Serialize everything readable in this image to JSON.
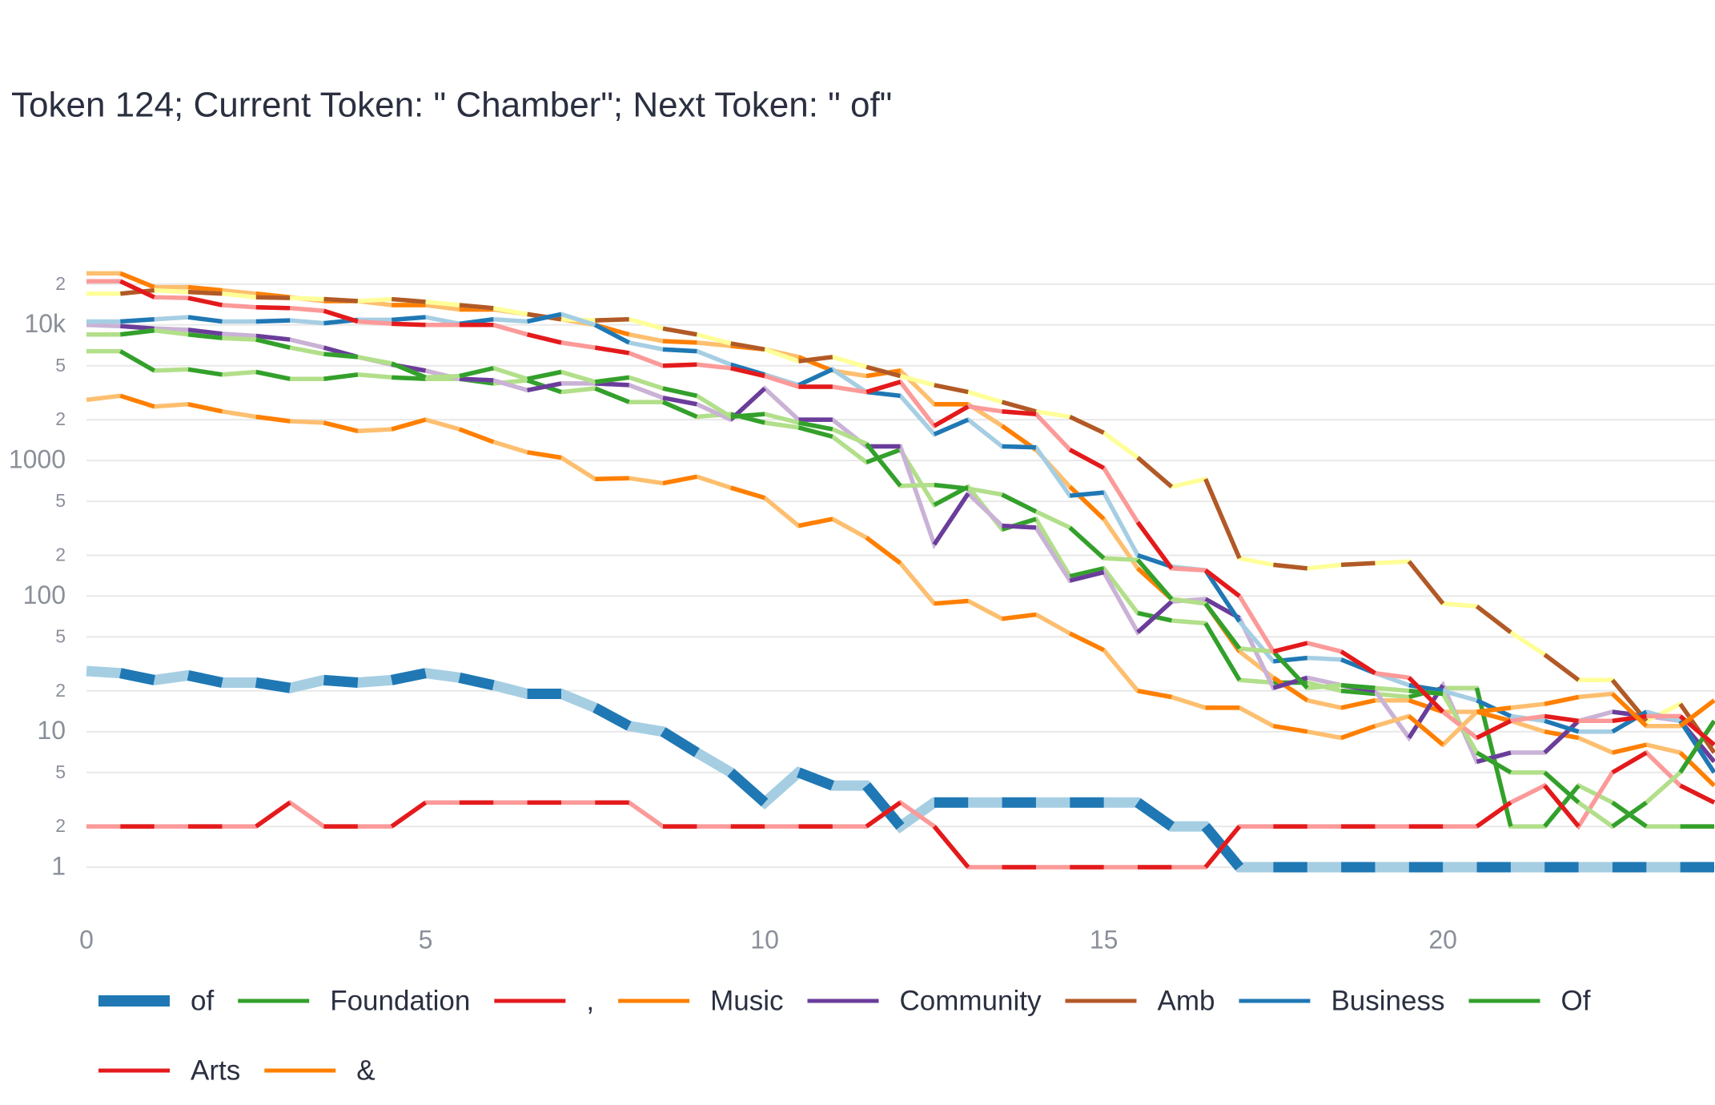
{
  "chart_data": {
    "type": "line",
    "title": "Token 124; Current Token: \" Chamber\"; Next Token: \" of\"",
    "x": [
      0,
      0.5,
      1,
      1.5,
      2,
      2.5,
      3,
      3.5,
      4,
      4.5,
      5,
      5.5,
      6,
      6.5,
      7,
      7.5,
      8,
      8.5,
      9,
      9.5,
      10,
      10.5,
      11,
      11.5,
      12,
      12.5,
      13,
      13.5,
      14,
      14.5,
      15,
      15.5,
      16,
      16.5,
      17,
      17.5,
      18,
      18.5,
      19,
      19.5,
      20,
      20.5,
      21,
      21.5,
      22,
      22.5,
      23,
      23.5,
      24
    ],
    "xlim": [
      0,
      24
    ],
    "xticks": [
      0,
      5,
      10,
      15,
      20
    ],
    "ylim": [
      0.5,
      30000
    ],
    "log_y": true,
    "yticks": [
      1,
      2,
      5,
      10,
      {
        "value": 20,
        "label": "2"
      },
      {
        "value": 50,
        "label": "5"
      },
      100,
      {
        "value": 200,
        "label": "2"
      },
      {
        "value": 500,
        "label": "5"
      },
      1000,
      {
        "value": 2000,
        "label": "2"
      },
      {
        "value": 5000,
        "label": "5"
      },
      {
        "value": 10000,
        "label": "10k"
      },
      {
        "value": 20000,
        "label": "2"
      }
    ],
    "grid": true,
    "legend": "bottom",
    "series": [
      {
        "name": "of",
        "color": "#1f78b4",
        "alt_color": "#a6cee3",
        "emphasis": true,
        "values": [
          28,
          27,
          24,
          26,
          23,
          23,
          21,
          24,
          23,
          24,
          27,
          25,
          22,
          19,
          19,
          15,
          11,
          10,
          7,
          5,
          3,
          5,
          4,
          4,
          2,
          3,
          3,
          3,
          3,
          3,
          3,
          3,
          2,
          2,
          1,
          1,
          1,
          1,
          1,
          1,
          1,
          1,
          1,
          1,
          1,
          1,
          1,
          1,
          1
        ]
      },
      {
        "name": "Foundation",
        "color": "#33a02c",
        "alt_color": "#b2df8a",
        "values": [
          6400,
          6400,
          4600,
          4700,
          4300,
          4500,
          4000,
          4000,
          4300,
          4100,
          4000,
          4000,
          3700,
          3900,
          3200,
          3400,
          2700,
          2700,
          2100,
          2200,
          1900,
          1750,
          1500,
          970,
          1200,
          470,
          640,
          310,
          370,
          140,
          160,
          75,
          66,
          63,
          24,
          23,
          23,
          20,
          19,
          18,
          21,
          21,
          2,
          2,
          4,
          3,
          2,
          2,
          2
        ]
      },
      {
        "name": ",",
        "color": "#e31a1c",
        "alt_color": "#fb9a99",
        "values": [
          2,
          2,
          2,
          2,
          2,
          2,
          3,
          2,
          2,
          2,
          3,
          3,
          3,
          3,
          3,
          3,
          3,
          2,
          2,
          2,
          2,
          2,
          2,
          2,
          3,
          2,
          1,
          1,
          1,
          1,
          1,
          1,
          1,
          1,
          2,
          2,
          2,
          2,
          2,
          2,
          2,
          2,
          3,
          4,
          2,
          5,
          7,
          4,
          3
        ]
      },
      {
        "name": "Music",
        "color": "#ff7f00",
        "alt_color": "#fdbf6f",
        "values": [
          24000,
          24000,
          19000,
          19000,
          18000,
          17000,
          16000,
          15000,
          15000,
          14000,
          14000,
          13000,
          13000,
          12000,
          11000,
          10000,
          8500,
          7600,
          7400,
          7000,
          6600,
          5800,
          4600,
          4200,
          4600,
          2600,
          2600,
          1800,
          1200,
          640,
          370,
          160,
          95,
          88,
          39,
          25,
          17,
          15,
          17,
          17,
          14,
          14,
          12,
          10,
          9,
          7,
          8,
          7,
          4
        ]
      },
      {
        "name": "Community",
        "color": "#6a3d9a",
        "alt_color": "#cab2d6",
        "values": [
          10000,
          9800,
          9400,
          9200,
          8600,
          8300,
          7800,
          6800,
          5800,
          5100,
          4600,
          4000,
          3900,
          3300,
          3700,
          3700,
          3600,
          2900,
          2600,
          2000,
          3400,
          2000,
          2000,
          1270,
          1270,
          240,
          570,
          330,
          320,
          130,
          150,
          54,
          91,
          95,
          69,
          21,
          25,
          22,
          20,
          9,
          22,
          6,
          7,
          7,
          12,
          14,
          13,
          12,
          6
        ]
      },
      {
        "name": "Amb",
        "color": "#b15928",
        "alt_color": "#ffff99",
        "values": [
          17000,
          17000,
          18000,
          17500,
          17000,
          16000,
          15800,
          15500,
          15000,
          15500,
          14800,
          14000,
          13300,
          12000,
          11000,
          10800,
          11000,
          9400,
          8500,
          7300,
          6600,
          5400,
          5800,
          4900,
          4200,
          3600,
          3200,
          2700,
          2300,
          2100,
          1600,
          1050,
          640,
          730,
          190,
          170,
          160,
          170,
          175,
          180,
          88,
          84,
          54,
          37,
          24,
          24,
          12,
          16,
          7
        ]
      },
      {
        "name": "Business",
        "color": "#1f78b4",
        "alt_color": "#a6cee3",
        "values": [
          10600,
          10600,
          11000,
          11400,
          10600,
          10600,
          10800,
          10300,
          10900,
          10900,
          11400,
          10200,
          11000,
          10600,
          12000,
          10000,
          7400,
          6600,
          6400,
          5100,
          4300,
          3600,
          4700,
          3200,
          3000,
          1560,
          2000,
          1270,
          1250,
          550,
          580,
          200,
          165,
          155,
          65,
          33,
          35,
          34,
          27,
          22,
          20,
          17,
          13,
          12,
          10,
          10,
          14,
          12,
          5
        ]
      },
      {
        "name": "Of",
        "color": "#33a02c",
        "alt_color": "#b2df8a",
        "values": [
          8500,
          8500,
          9100,
          8500,
          8000,
          7800,
          6800,
          6100,
          5800,
          5200,
          4100,
          4200,
          4800,
          4000,
          4500,
          3800,
          4100,
          3400,
          3000,
          2100,
          2200,
          1900,
          1700,
          1330,
          650,
          660,
          620,
          560,
          420,
          320,
          190,
          185,
          95,
          88,
          41,
          39,
          21,
          22,
          21,
          20,
          19,
          7,
          5,
          5,
          3,
          2,
          3,
          5,
          12
        ]
      },
      {
        "name": "Arts",
        "color": "#e31a1c",
        "alt_color": "#fb9a99",
        "values": [
          21000,
          21000,
          16000,
          15800,
          14000,
          13500,
          13300,
          12700,
          10600,
          10200,
          10000,
          10000,
          10000,
          8500,
          7400,
          6800,
          6200,
          5000,
          5100,
          4800,
          4200,
          3500,
          3500,
          3200,
          3800,
          1800,
          2500,
          2300,
          2200,
          1200,
          880,
          350,
          160,
          155,
          100,
          39,
          45,
          39,
          27,
          25,
          14,
          9,
          12,
          13,
          12,
          12,
          13,
          13,
          8
        ]
      },
      {
        "name": "&",
        "color": "#ff7f00",
        "alt_color": "#fdbf6f",
        "values": [
          2800,
          3000,
          2500,
          2600,
          2300,
          2100,
          1950,
          1900,
          1650,
          1700,
          2000,
          1700,
          1370,
          1150,
          1050,
          730,
          740,
          680,
          760,
          630,
          530,
          330,
          370,
          270,
          175,
          88,
          92,
          68,
          73,
          53,
          40,
          20,
          18,
          15,
          15,
          11,
          10,
          9,
          11,
          13,
          8,
          14,
          15,
          16,
          18,
          19,
          11,
          11,
          17
        ]
      }
    ]
  }
}
